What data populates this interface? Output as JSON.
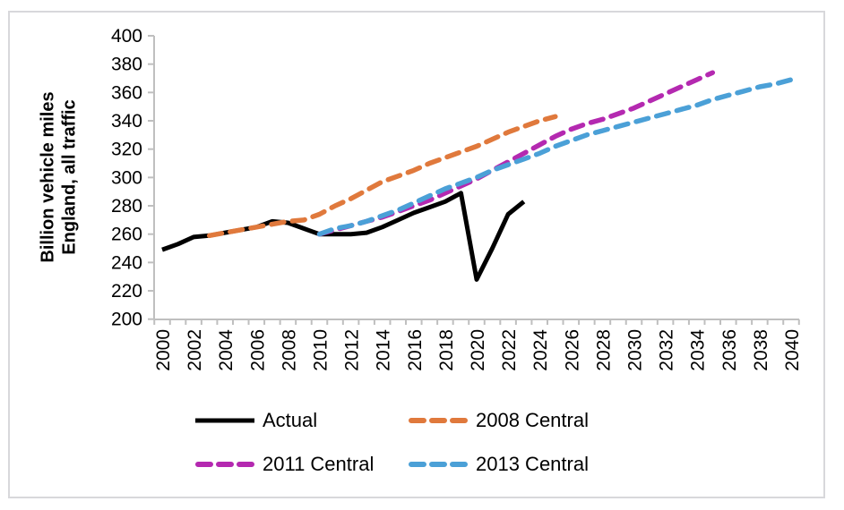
{
  "frame": {
    "border_color": "#d8d8db",
    "background": "#ffffff"
  },
  "y_axis": {
    "title_line1": "Billion vehicle miles",
    "title_line2": "England, all traffic",
    "tick_labels": [
      "400",
      "380",
      "360",
      "340",
      "320",
      "300",
      "280",
      "260",
      "240",
      "220",
      "200"
    ],
    "axis_color": "#bfbfbf",
    "label_color": "#000000"
  },
  "x_axis": {
    "tick_labels": [
      "2000",
      "2002",
      "2004",
      "2006",
      "2008",
      "2010",
      "2012",
      "2014",
      "2016",
      "2018",
      "2020",
      "2022",
      "2024",
      "2026",
      "2028",
      "2030",
      "2032",
      "2034",
      "2036",
      "2038",
      "2040"
    ],
    "minor_tick_step_years": 1,
    "axis_color": "#bfbfbf",
    "label_color": "#000000"
  },
  "chart_data": {
    "type": "line",
    "title": "",
    "xlabel": "",
    "ylabel": "Billion vehicle miles England, all traffic",
    "xlim": [
      2000,
      2040
    ],
    "ylim": [
      200,
      400
    ],
    "y_tick_step": 20,
    "x_label_step": 2,
    "grid": false,
    "legend_position": "bottom",
    "series": [
      {
        "name": "Actual",
        "color": "#000000",
        "style": "solid",
        "start_year": 2000,
        "values": [
          249,
          253,
          258,
          259,
          261,
          263,
          265,
          269,
          268,
          264,
          260,
          260,
          260,
          261,
          265,
          270,
          275,
          279,
          283,
          289,
          228,
          250,
          274,
          283
        ]
      },
      {
        "name": "2008 Central",
        "color": "#e0793c",
        "style": "dashed",
        "start_year": 2003,
        "values": [
          259,
          261,
          263,
          265,
          267,
          269,
          270,
          274,
          280,
          285,
          291,
          297,
          301,
          305,
          310,
          314,
          318,
          322,
          327,
          332,
          336,
          340,
          343
        ]
      },
      {
        "name": "2011 Central",
        "color": "#b429b0",
        "style": "dashed",
        "start_year": 2010,
        "values": [
          260,
          263,
          266,
          269,
          272,
          276,
          280,
          284,
          289,
          294,
          299,
          305,
          311,
          317,
          323,
          329,
          334,
          338,
          341,
          345,
          349,
          354,
          359,
          364,
          369,
          374
        ]
      },
      {
        "name": "2013 Central",
        "color": "#4ba0d7",
        "style": "dashed",
        "start_year": 2010,
        "values": [
          260,
          264,
          266,
          269,
          273,
          277,
          282,
          287,
          292,
          296,
          300,
          305,
          309,
          313,
          317,
          322,
          326,
          330,
          333,
          336,
          339,
          342,
          345,
          348,
          351,
          355,
          358,
          361,
          364,
          366,
          369
        ]
      }
    ]
  },
  "legend": {
    "items": [
      {
        "label": "Actual"
      },
      {
        "label": "2008 Central"
      },
      {
        "label": "2011 Central"
      },
      {
        "label": "2013 Central"
      }
    ]
  }
}
